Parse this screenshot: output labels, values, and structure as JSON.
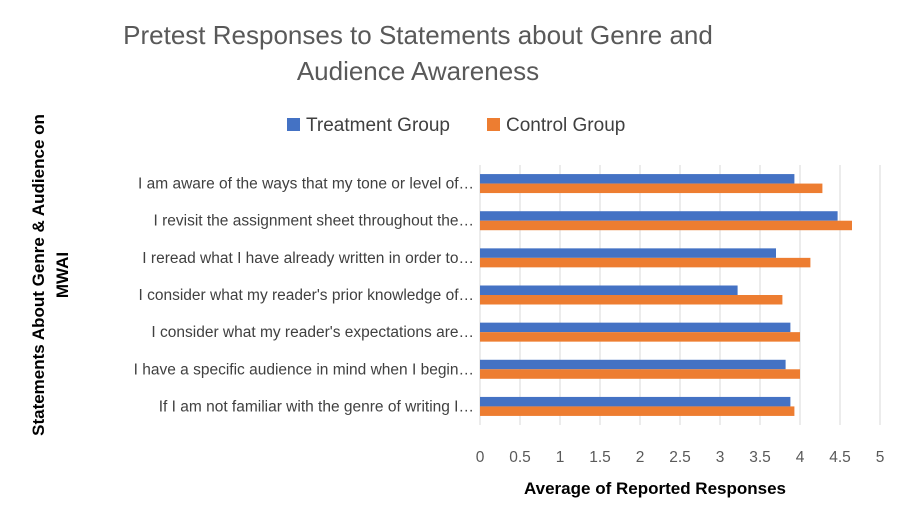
{
  "chart_data": {
    "type": "bar",
    "orientation": "horizontal",
    "title_lines": [
      "Pretest Responses to Statements about Genre and",
      "Audience Awareness"
    ],
    "ylabel_lines": [
      "Statements About Genre & Audience on",
      "MWAI"
    ],
    "xlabel": "Average of Reported Responses",
    "categories": [
      "I am aware of the ways that my tone or level of…",
      "I revisit the assignment sheet throughout the…",
      "I reread what I have already written in order to…",
      "I consider what my reader's prior knowledge of…",
      "I consider what my reader's expectations are…",
      "I have a specific audience in mind when I begin…",
      "If I am not familiar with the genre of writing I…"
    ],
    "series": [
      {
        "name": "Treatment Group",
        "color": "#4472c4",
        "values": [
          3.93,
          4.47,
          3.7,
          3.22,
          3.88,
          3.82,
          3.88
        ]
      },
      {
        "name": "Control Group",
        "color": "#ed7d31",
        "values": [
          4.28,
          4.65,
          4.13,
          3.78,
          4.0,
          4.0,
          3.93
        ]
      }
    ],
    "xlim": [
      0,
      5
    ],
    "xticks": [
      "0",
      "0.5",
      "1",
      "1.5",
      "2",
      "2.5",
      "3",
      "3.5",
      "4",
      "4.5",
      "5"
    ],
    "grid": true,
    "legend_position": "top"
  }
}
